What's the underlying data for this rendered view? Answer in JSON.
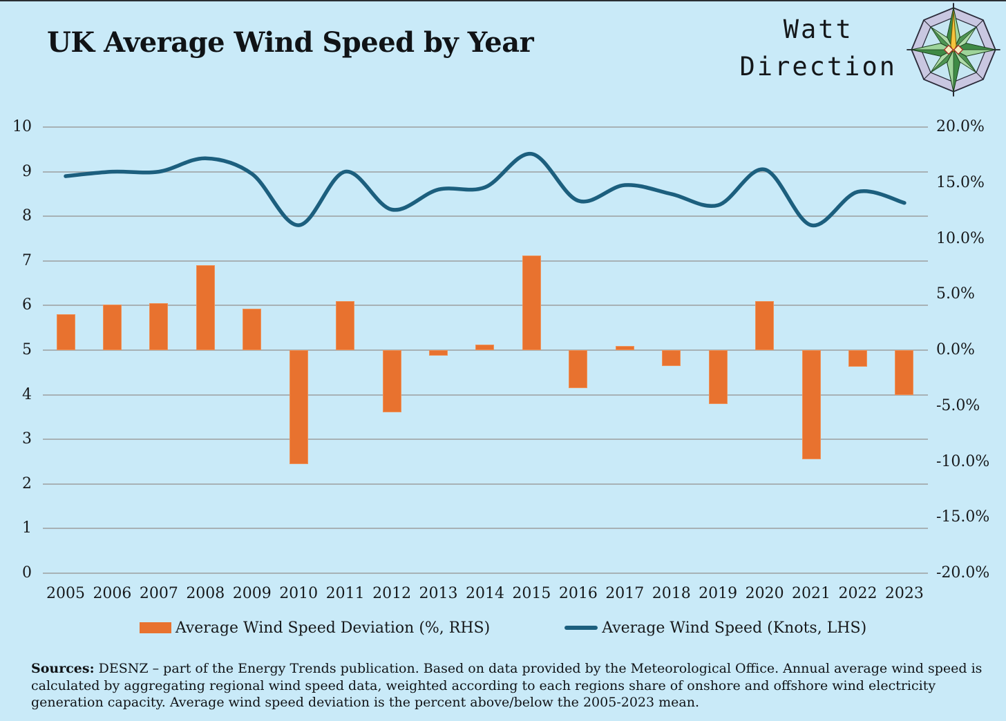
{
  "header": {
    "title": "UK Average Wind Speed by Year",
    "brand_line1": "Watt",
    "brand_line2": "Direction",
    "logo": "compass-rose-icon"
  },
  "colors": {
    "background": "#C9EAF8",
    "bar": "#E8722F",
    "line": "#1C5F7E",
    "gridline": "#A7B1B5",
    "text": "#15181A",
    "bottom_bar": "#050505"
  },
  "chart_data": {
    "type": "combo-bar-line",
    "title": "UK Average Wind Speed by Year",
    "categories": [
      "2005",
      "2006",
      "2007",
      "2008",
      "2009",
      "2010",
      "2011",
      "2012",
      "2013",
      "2014",
      "2015",
      "2016",
      "2017",
      "2018",
      "2019",
      "2020",
      "2021",
      "2022",
      "2023"
    ],
    "series": [
      {
        "name": "Average Wind Speed Deviation (%, RHS)",
        "type": "bar",
        "axis": "right",
        "color": "#E8722F",
        "values": [
          3.2,
          4.1,
          4.2,
          7.6,
          3.7,
          -10.2,
          4.4,
          -5.6,
          -0.5,
          0.5,
          8.5,
          -3.4,
          0.4,
          -1.4,
          -4.8,
          4.4,
          -9.8,
          -1.5,
          -4.0
        ]
      },
      {
        "name": "Average Wind Speed (Knots, LHS)",
        "type": "line",
        "axis": "left",
        "color": "#1C5F7E",
        "values": [
          8.9,
          9.0,
          9.0,
          9.3,
          8.95,
          7.8,
          9.0,
          8.15,
          8.6,
          8.65,
          9.4,
          8.35,
          8.7,
          8.5,
          8.25,
          9.05,
          7.8,
          8.55,
          8.3
        ]
      }
    ],
    "left_axis": {
      "min": 0,
      "max": 10,
      "tick_step": 1,
      "ticks": [
        "0",
        "1",
        "2",
        "3",
        "4",
        "5",
        "6",
        "7",
        "8",
        "9",
        "10"
      ]
    },
    "right_axis": {
      "min": -20,
      "max": 20,
      "tick_step": 5,
      "ticks": [
        "20.0%",
        "15.0%",
        "10.0%",
        "5.0%",
        "0.0%",
        "-5.0%",
        "-10.0%",
        "-15.0%",
        "-20.0%"
      ]
    },
    "grid": true,
    "legend_position": "bottom"
  },
  "legend": [
    {
      "label": "Average Wind Speed Deviation (%, RHS)",
      "swatch": "bar"
    },
    {
      "label": "Average Wind Speed (Knots, LHS)",
      "swatch": "line"
    }
  ],
  "sources": {
    "label": "Sources:",
    "text": "DESNZ – part of the Energy Trends publication. Based on data provided by the Meteorological Office. Annual average wind speed is calculated by aggregating regional wind speed data, weighted according to each regions share of onshore and offshore wind electricity generation capacity.  Average wind speed deviation is the percent above/below the 2005-2023 mean."
  }
}
